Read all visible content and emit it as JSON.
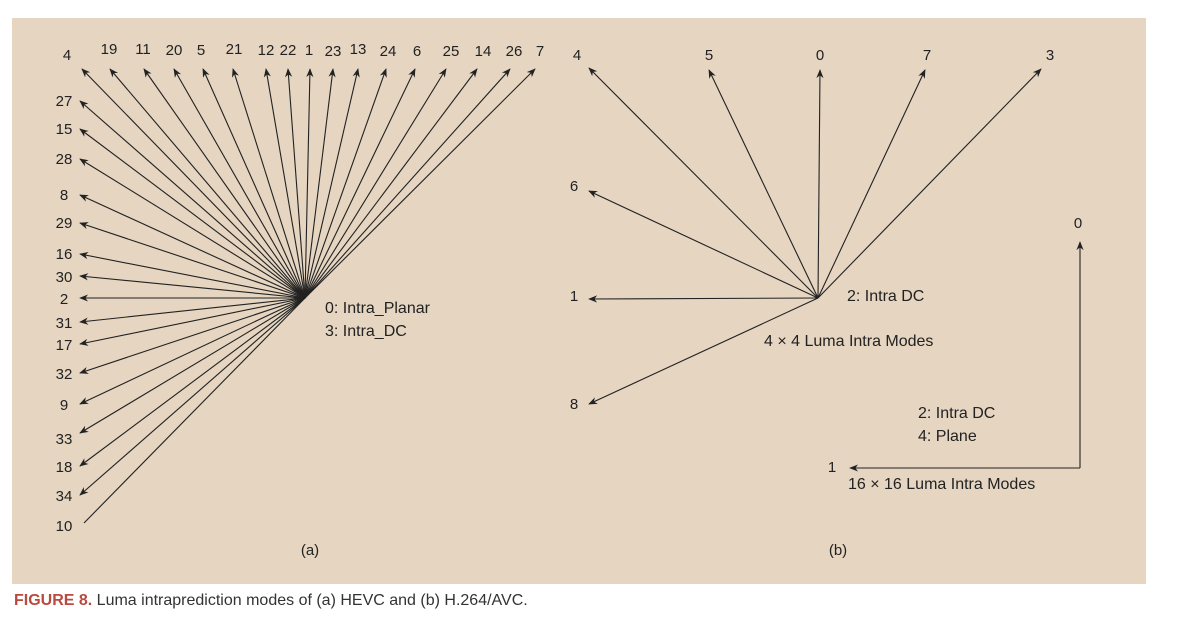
{
  "colors": {
    "panel": "#e5d5c1",
    "ink": "#222222",
    "caption_label": "#b84a3f"
  },
  "panel_a": {
    "modes": [
      "4",
      "19",
      "11",
      "20",
      "5",
      "21",
      "12",
      "22",
      "1",
      "23",
      "13",
      "24",
      "6",
      "25",
      "14",
      "26",
      "7",
      "27",
      "15",
      "28",
      "8",
      "29",
      "16",
      "30",
      "2",
      "31",
      "17",
      "32",
      "9",
      "33",
      "18",
      "34",
      "10"
    ],
    "center_label_1": "0: Intra_Planar",
    "center_label_2": "3: Intra_DC",
    "sublabel": "(a)"
  },
  "panel_b": {
    "modes4x4": [
      "4",
      "5",
      "0",
      "7",
      "3",
      "6",
      "1",
      "8"
    ],
    "dc_label": "2: Intra DC",
    "title4x4": "4 × 4 Luma Intra Modes",
    "modes16": [
      "0",
      "1"
    ],
    "label16_1": "2: Intra DC",
    "label16_2": "4: Plane",
    "title16": "16 × 16 Luma Intra Modes",
    "sublabel": "(b)"
  },
  "caption": {
    "label": "FIGURE 8.",
    "text": " Luma intraprediction modes of (a) HEVC and (b) H.264/AVC."
  }
}
